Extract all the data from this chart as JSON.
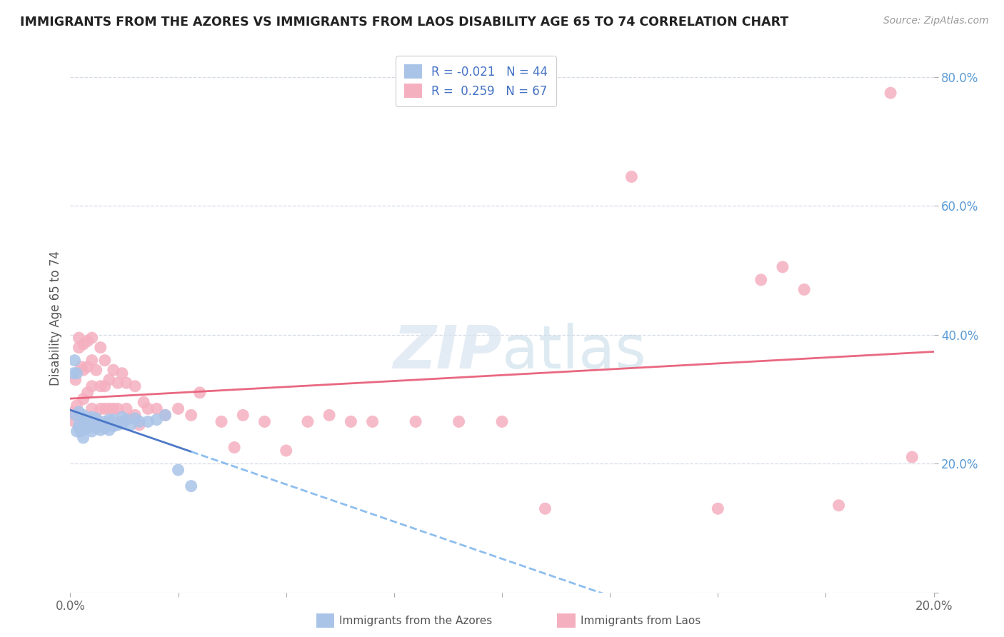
{
  "title": "IMMIGRANTS FROM THE AZORES VS IMMIGRANTS FROM LAOS DISABILITY AGE 65 TO 74 CORRELATION CHART",
  "source": "Source: ZipAtlas.com",
  "ylabel": "Disability Age 65 to 74",
  "xlim": [
    0.0,
    0.2
  ],
  "ylim": [
    0.0,
    0.85
  ],
  "yticks": [
    0.0,
    0.2,
    0.4,
    0.6,
    0.8
  ],
  "ytick_labels": [
    "",
    "20.0%",
    "40.0%",
    "60.0%",
    "80.0%"
  ],
  "xticks": [
    0.0,
    0.025,
    0.05,
    0.075,
    0.1,
    0.125,
    0.15,
    0.175,
    0.2
  ],
  "xtick_labels": [
    "0.0%",
    "",
    "",
    "",
    "",
    "",
    "",
    "",
    "20.0%"
  ],
  "azores_R": -0.021,
  "azores_N": 44,
  "laos_R": 0.259,
  "laos_N": 67,
  "azores_color": "#aac4e8",
  "laos_color": "#f5b0c0",
  "azores_line_color": "#4472c4",
  "laos_line_color": "#e8607a",
  "background_color": "#ffffff",
  "grid_color": "#d5dce8",
  "azores_x": [
    0.0008,
    0.001,
    0.0012,
    0.0015,
    0.0015,
    0.002,
    0.002,
    0.002,
    0.0025,
    0.003,
    0.003,
    0.003,
    0.003,
    0.004,
    0.004,
    0.004,
    0.004,
    0.005,
    0.005,
    0.005,
    0.005,
    0.006,
    0.006,
    0.006,
    0.007,
    0.007,
    0.008,
    0.008,
    0.009,
    0.009,
    0.01,
    0.01,
    0.011,
    0.012,
    0.012,
    0.013,
    0.014,
    0.015,
    0.016,
    0.018,
    0.02,
    0.022,
    0.025,
    0.028
  ],
  "azores_y": [
    0.34,
    0.36,
    0.275,
    0.25,
    0.34,
    0.255,
    0.26,
    0.28,
    0.25,
    0.24,
    0.26,
    0.27,
    0.275,
    0.255,
    0.255,
    0.265,
    0.27,
    0.25,
    0.26,
    0.265,
    0.272,
    0.255,
    0.265,
    0.27,
    0.252,
    0.26,
    0.255,
    0.265,
    0.252,
    0.268,
    0.258,
    0.268,
    0.26,
    0.262,
    0.272,
    0.268,
    0.26,
    0.27,
    0.265,
    0.265,
    0.268,
    0.275,
    0.19,
    0.165
  ],
  "laos_x": [
    0.0008,
    0.001,
    0.0012,
    0.0015,
    0.002,
    0.002,
    0.0025,
    0.003,
    0.003,
    0.003,
    0.004,
    0.004,
    0.004,
    0.005,
    0.005,
    0.005,
    0.005,
    0.006,
    0.006,
    0.007,
    0.007,
    0.007,
    0.008,
    0.008,
    0.008,
    0.009,
    0.009,
    0.01,
    0.01,
    0.011,
    0.011,
    0.012,
    0.012,
    0.013,
    0.013,
    0.014,
    0.015,
    0.015,
    0.016,
    0.017,
    0.018,
    0.02,
    0.022,
    0.025,
    0.028,
    0.03,
    0.035,
    0.038,
    0.04,
    0.045,
    0.05,
    0.055,
    0.06,
    0.065,
    0.07,
    0.08,
    0.09,
    0.1,
    0.11,
    0.13,
    0.15,
    0.16,
    0.165,
    0.17,
    0.178,
    0.19,
    0.195
  ],
  "laos_y": [
    0.28,
    0.265,
    0.33,
    0.29,
    0.395,
    0.38,
    0.35,
    0.3,
    0.345,
    0.385,
    0.31,
    0.35,
    0.39,
    0.285,
    0.32,
    0.36,
    0.395,
    0.27,
    0.345,
    0.285,
    0.32,
    0.38,
    0.285,
    0.32,
    0.36,
    0.285,
    0.33,
    0.285,
    0.345,
    0.285,
    0.325,
    0.265,
    0.34,
    0.285,
    0.325,
    0.27,
    0.275,
    0.32,
    0.26,
    0.295,
    0.285,
    0.285,
    0.275,
    0.285,
    0.275,
    0.31,
    0.265,
    0.225,
    0.275,
    0.265,
    0.22,
    0.265,
    0.275,
    0.265,
    0.265,
    0.265,
    0.265,
    0.265,
    0.13,
    0.645,
    0.13,
    0.485,
    0.505,
    0.47,
    0.135,
    0.775,
    0.21
  ]
}
